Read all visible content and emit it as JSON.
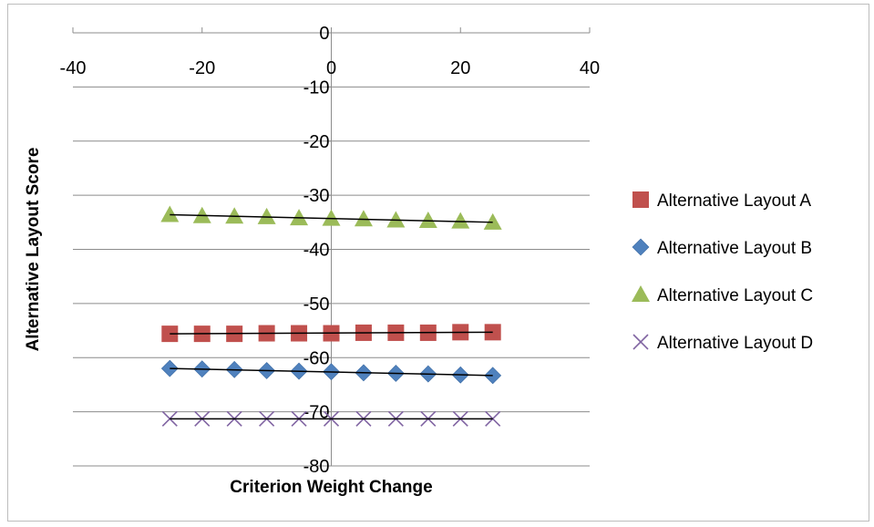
{
  "chart_data": {
    "type": "scatter",
    "title": "",
    "xlabel": "Criterion Weight Change",
    "ylabel": "Alternative Layout Score",
    "xlim": [
      -40,
      40
    ],
    "ylim": [
      -80,
      0
    ],
    "x_ticks": [
      -40,
      -20,
      0,
      20,
      40
    ],
    "y_ticks": [
      0,
      -10,
      -20,
      -30,
      -40,
      -50,
      -60,
      -70,
      -80
    ],
    "grid": "horizontal",
    "legend_position": "right",
    "x": [
      -25,
      -20,
      -15,
      -10,
      -5,
      0,
      5,
      10,
      15,
      20,
      25
    ],
    "series": [
      {
        "name": "Alternative Layout A",
        "marker": "square",
        "color": "#c0504d",
        "values": [
          -55.6,
          -55.6,
          -55.6,
          -55.5,
          -55.5,
          -55.5,
          -55.4,
          -55.4,
          -55.4,
          -55.3,
          -55.3
        ],
        "trendline": [
          -55.6,
          -55.3
        ]
      },
      {
        "name": "Alternative Layout B",
        "marker": "diamond",
        "color": "#4f81bd",
        "values": [
          -62.0,
          -62.1,
          -62.2,
          -62.4,
          -62.5,
          -62.6,
          -62.8,
          -62.9,
          -63.0,
          -63.2,
          -63.3
        ],
        "trendline": [
          -62.0,
          -63.3
        ]
      },
      {
        "name": "Alternative Layout C",
        "marker": "triangle",
        "color": "#9bbb59",
        "values": [
          -33.6,
          -33.8,
          -33.9,
          -34.0,
          -34.2,
          -34.3,
          -34.4,
          -34.6,
          -34.7,
          -34.8,
          -35.0
        ],
        "trendline": [
          -33.6,
          -35.0
        ]
      },
      {
        "name": "Alternative Layout D",
        "marker": "x",
        "color": "#8064a2",
        "values": [
          -71.3,
          -71.3,
          -71.3,
          -71.3,
          -71.3,
          -71.3,
          -71.3,
          -71.3,
          -71.3,
          -71.3,
          -71.3
        ],
        "trendline": [
          -71.3,
          -71.3
        ]
      }
    ],
    "trendline_color": "#000000"
  }
}
